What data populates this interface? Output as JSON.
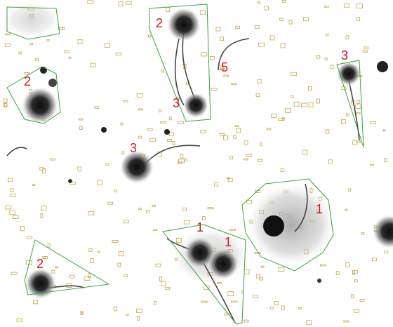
{
  "annotations": [
    "2",
    "5",
    "3",
    "2",
    "3",
    "3",
    "1",
    "1",
    "1",
    "2"
  ]
}
